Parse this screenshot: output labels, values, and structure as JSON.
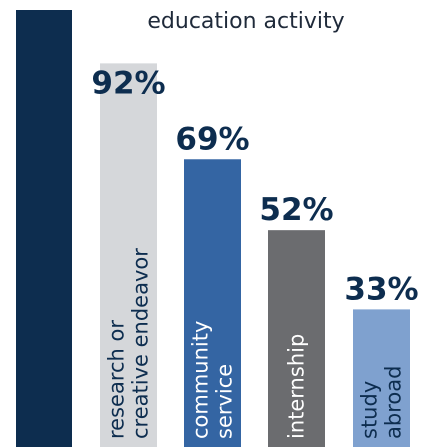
{
  "chart_data": {
    "type": "bar",
    "title_visible_part": "education  activity",
    "categories": [
      [
        "research or",
        "creative endeavor"
      ],
      [
        "community",
        "service"
      ],
      [
        "internship"
      ],
      [
        "study",
        "abroad"
      ]
    ],
    "values": [
      92,
      69,
      52,
      33
    ],
    "value_labels": [
      "92%",
      "69%",
      "52%",
      "33%"
    ],
    "ylim": [
      0,
      100
    ],
    "grid": false,
    "colors": {
      "first_column": "#0d2d4f",
      "value_label": "#0d2d4f",
      "title": "#1f2a3a",
      "bars": [
        "#d5d7da",
        "#3465a3",
        "#6b6c6f",
        "#7fa1cf"
      ],
      "bar_text": [
        "#0d2d4f",
        "#ffffff",
        "#ffffff",
        "#0d2d4f"
      ]
    }
  }
}
